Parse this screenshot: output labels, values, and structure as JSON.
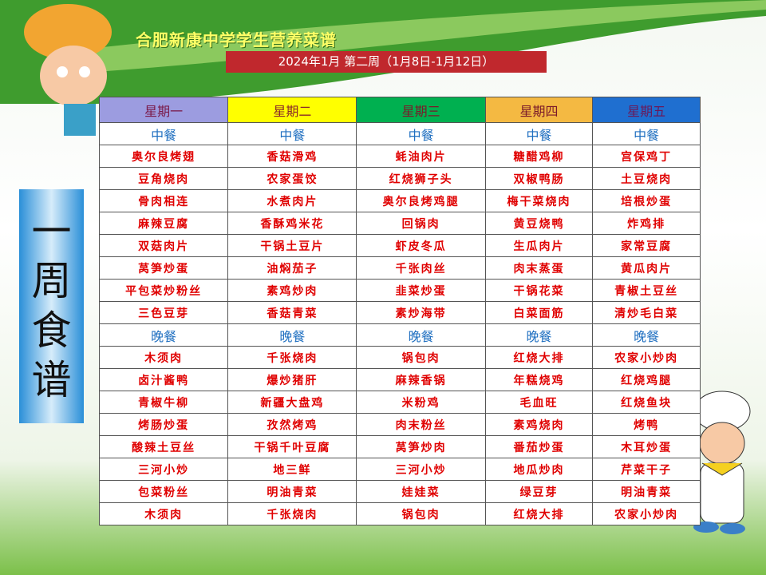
{
  "title": "合肥新康中学学生营养菜谱",
  "subtitle": "2024年1月 第二周（1月8日-1月12日）",
  "side_label": "一周食谱",
  "table": {
    "headers": [
      "星期一",
      "星期二",
      "星期三",
      "星期四",
      "星期五"
    ],
    "sections": [
      {
        "label": [
          "中餐",
          "中餐",
          "中餐",
          "中餐",
          "中餐"
        ],
        "rows": [
          [
            "奥尔良烤翅",
            "香菇滑鸡",
            "蚝油肉片",
            "糖醋鸡柳",
            "宫保鸡丁"
          ],
          [
            "豆角烧肉",
            "农家蛋饺",
            "红烧狮子头",
            "双椒鸭肠",
            "土豆烧肉"
          ],
          [
            "骨肉相连",
            "水煮肉片",
            "奥尔良烤鸡腿",
            "梅干菜烧肉",
            "培根炒蛋"
          ],
          [
            "麻辣豆腐",
            "香酥鸡米花",
            "回锅肉",
            "黄豆烧鸭",
            "炸鸡排"
          ],
          [
            "双菇肉片",
            "干锅土豆片",
            "虾皮冬瓜",
            "生瓜肉片",
            "家常豆腐"
          ],
          [
            "莴笋炒蛋",
            "油焖茄子",
            "千张肉丝",
            "肉末蒸蛋",
            "黄瓜肉片"
          ],
          [
            "平包菜炒粉丝",
            "素鸡炒肉",
            "韭菜炒蛋",
            "干锅花菜",
            "青椒土豆丝"
          ],
          [
            "三色豆芽",
            "香菇青菜",
            "素炒海带",
            "白菜面筋",
            "清炒毛白菜"
          ]
        ]
      },
      {
        "label": [
          "晚餐",
          "晚餐",
          "晚餐",
          "晚餐",
          "晚餐"
        ],
        "rows": [
          [
            "木须肉",
            "千张烧肉",
            "锅包肉",
            "红烧大排",
            "农家小炒肉"
          ],
          [
            "卤汁酱鸭",
            "爆炒猪肝",
            "麻辣香锅",
            "年糕烧鸡",
            "红烧鸡腿"
          ],
          [
            "青椒牛柳",
            "新疆大盘鸡",
            "米粉鸡",
            "毛血旺",
            "红烧鱼块"
          ],
          [
            "烤肠炒蛋",
            "孜然烤鸡",
            "肉末粉丝",
            "素鸡烧肉",
            "烤鸭"
          ],
          [
            "酸辣土豆丝",
            "干锅千叶豆腐",
            "莴笋炒肉",
            "番茄炒蛋",
            "木耳炒蛋"
          ],
          [
            "三河小炒",
            "地三鲜",
            "三河小炒",
            "地瓜炒肉",
            "芹菜干子"
          ],
          [
            "包菜粉丝",
            "明油青菜",
            "娃娃菜",
            "绿豆芽",
            "明油青菜"
          ],
          [
            "木须肉",
            "千张烧肉",
            "锅包肉",
            "红烧大排",
            "农家小炒肉"
          ]
        ]
      }
    ]
  }
}
